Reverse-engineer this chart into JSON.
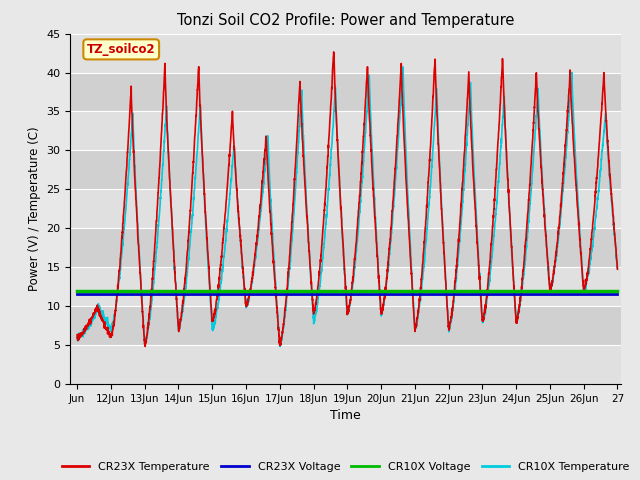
{
  "title": "Tonzi Soil CO2 Profile: Power and Temperature",
  "xlabel": "Time",
  "ylabel": "Power (V) / Temperature (C)",
  "ylim": [
    0,
    45
  ],
  "yticks": [
    0,
    5,
    10,
    15,
    20,
    25,
    30,
    35,
    40,
    45
  ],
  "annotation_text": "TZ_soilco2",
  "annotation_box_facecolor": "#ffffcc",
  "annotation_border_color": "#cc8800",
  "fig_facecolor": "#e8e8e8",
  "plot_bg_color": "#e8e8e8",
  "band_colors": [
    "#e0e0e0",
    "#d0d0d0"
  ],
  "cr23x_temp_color": "#dd0000",
  "cr23x_volt_color": "#0000cc",
  "cr10x_volt_color": "#00bb00",
  "cr10x_temp_color": "#00ccdd",
  "cr23x_voltage_val": 11.55,
  "cr10x_voltage_val": 12.0,
  "x_start": 11.0,
  "x_end": 27.0,
  "xtick_positions": [
    11,
    12,
    13,
    14,
    15,
    16,
    17,
    18,
    19,
    20,
    21,
    22,
    23,
    24,
    25,
    26,
    27
  ],
  "xtick_labels": [
    "Jun",
    "12Jun",
    "13Jun",
    "14Jun",
    "15Jun",
    "16Jun",
    "17Jun",
    "18Jun",
    "19Jun",
    "20Jun",
    "21Jun",
    "22Jun",
    "23Jun",
    "24Jun",
    "25Jun",
    "26Jun",
    "27"
  ],
  "legend_entries": [
    "CR23X Temperature",
    "CR23X Voltage",
    "CR10X Voltage",
    "CR10X Temperature"
  ],
  "legend_colors": [
    "#dd0000",
    "#0000cc",
    "#00bb00",
    "#00ccdd"
  ]
}
